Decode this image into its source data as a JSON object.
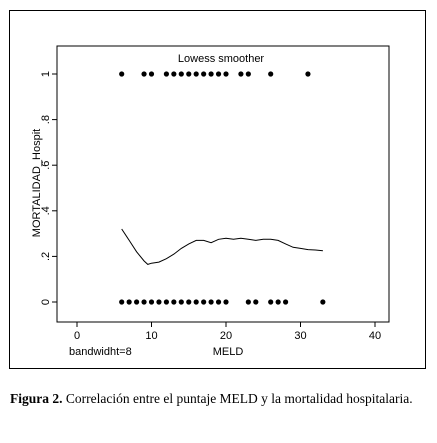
{
  "chart_data": {
    "type": "scatter",
    "title": "Lowess smoother",
    "xlabel": "MELD",
    "ylabel": "MORTALIDAD_Hospit",
    "xlim": [
      0,
      40
    ],
    "ylim": [
      0,
      1
    ],
    "x_ticks": [
      0,
      10,
      20,
      30,
      40
    ],
    "x_tick_labels": [
      "0",
      "10",
      "20",
      "30",
      "40"
    ],
    "y_ticks": [
      0,
      0.2,
      0.4,
      0.6,
      0.8,
      1
    ],
    "y_tick_labels": [
      "0",
      ".2",
      ".4",
      ".6",
      ".8",
      "1"
    ],
    "grid": false,
    "note": "bandwidht=8",
    "points_y1": [
      6,
      9,
      10,
      12,
      13,
      14,
      15,
      16,
      17,
      18,
      19,
      20,
      22,
      23,
      26,
      31
    ],
    "points_y0": [
      6,
      7,
      8,
      9,
      10,
      11,
      12,
      13,
      14,
      15,
      16,
      17,
      18,
      19,
      20,
      23,
      24,
      26,
      27,
      28,
      33
    ],
    "lowess": {
      "x": [
        6,
        7,
        8,
        9,
        9.5,
        10,
        11,
        12,
        13,
        14,
        15,
        16,
        17,
        18,
        19,
        20,
        21,
        22,
        23,
        24,
        25,
        26,
        27,
        28,
        29,
        30,
        31,
        32,
        33
      ],
      "y": [
        0.32,
        0.27,
        0.22,
        0.18,
        0.165,
        0.17,
        0.175,
        0.19,
        0.21,
        0.235,
        0.255,
        0.27,
        0.27,
        0.26,
        0.275,
        0.28,
        0.275,
        0.28,
        0.275,
        0.27,
        0.275,
        0.275,
        0.27,
        0.255,
        0.24,
        0.235,
        0.23,
        0.228,
        0.225
      ]
    }
  },
  "caption": {
    "lead": "Figura 2.",
    "text": " Correlación entre el puntaje  MELD y la mortalidad hospitalaria."
  }
}
